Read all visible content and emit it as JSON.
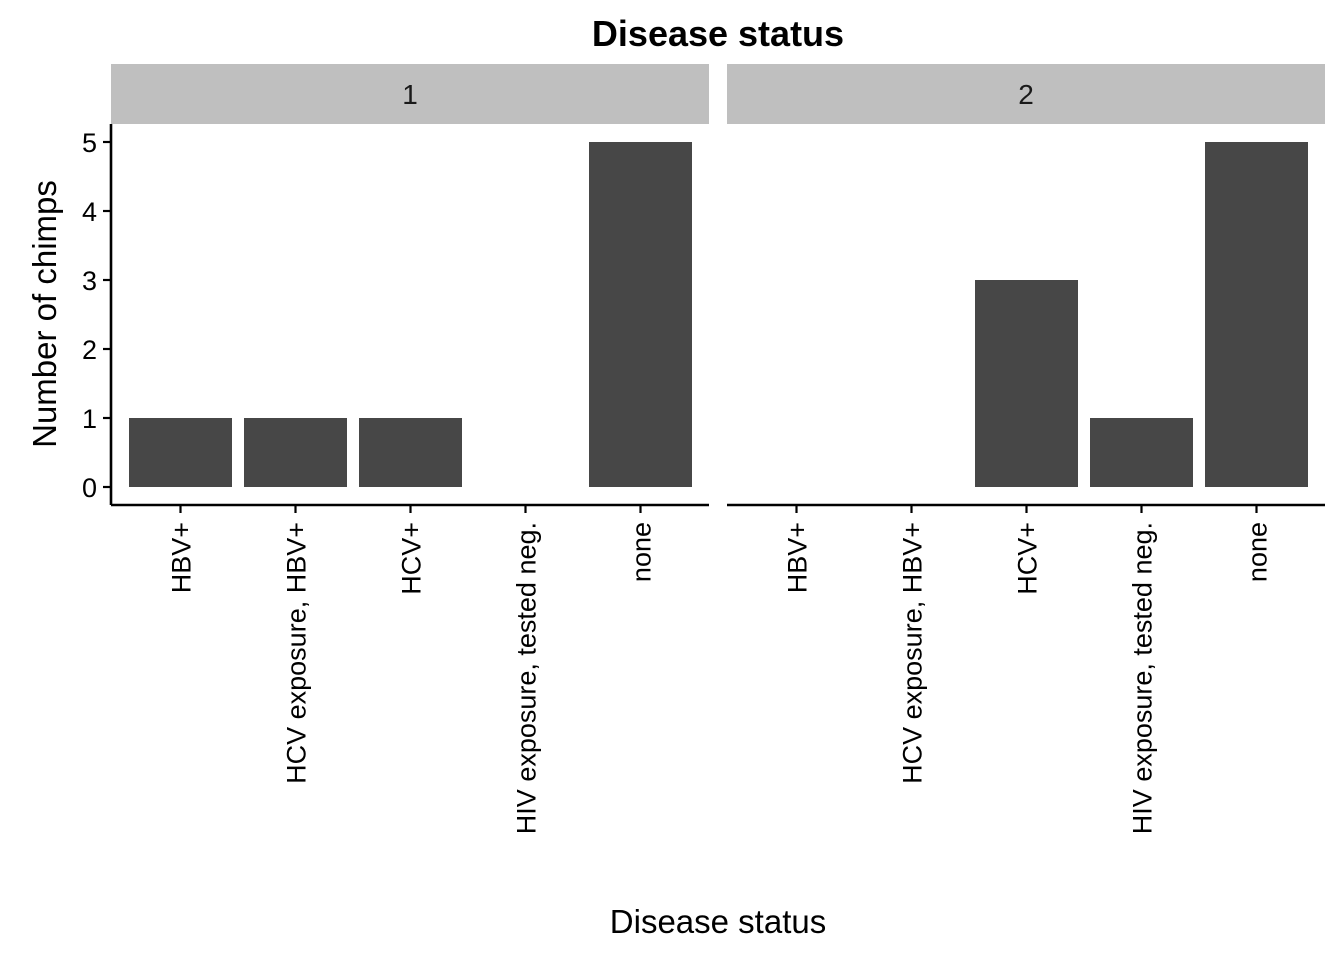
{
  "chart_data": {
    "type": "bar",
    "title": "Disease status",
    "xlabel": "Disease status",
    "ylabel": "Number of chimps",
    "ylim": [
      0,
      5.25
    ],
    "yticks": [
      0,
      1,
      2,
      3,
      4,
      5
    ],
    "categories": [
      "HBV+",
      "HCV exposure, HBV+",
      "HCV+",
      "HIV exposure, tested neg.",
      "none"
    ],
    "bar_color": "#474747",
    "strip_color": "#bfbfbf",
    "grid": false,
    "facets": [
      {
        "name": "1",
        "values": [
          1,
          1,
          1,
          0,
          5
        ]
      },
      {
        "name": "2",
        "values": [
          0,
          0,
          3,
          1,
          5
        ]
      }
    ]
  }
}
